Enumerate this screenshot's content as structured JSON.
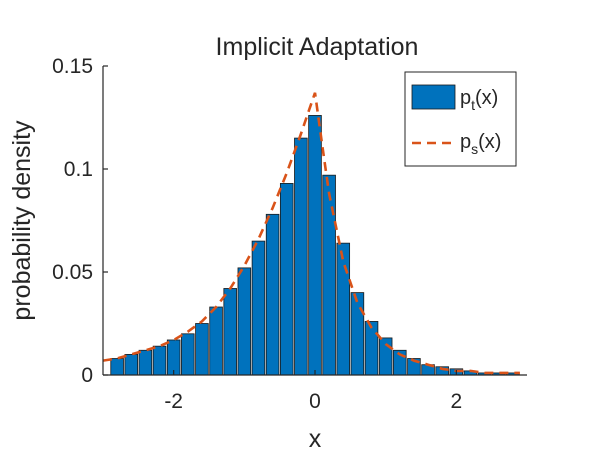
{
  "chart_data": {
    "type": "bar",
    "title": "Implicit Adaptation",
    "xlabel": "x",
    "ylabel": "probability density",
    "xlim": [
      -3,
      3
    ],
    "ylim": [
      0,
      0.15
    ],
    "xticks": [
      -2,
      0,
      2
    ],
    "xtick_labels": [
      "-2",
      "0",
      "2"
    ],
    "yticks": [
      0,
      0.05,
      0.1,
      0.15
    ],
    "ytick_labels": [
      "0",
      "0.05",
      "0.1",
      "0.15"
    ],
    "grid": false,
    "legend_position": "top-right",
    "bar_width": 0.18,
    "histogram": {
      "name_main": "p",
      "name_sub": "t",
      "name_suffix": "(x)",
      "color": "#0072BD",
      "bin_centers": [
        -2.8,
        -2.6,
        -2.4,
        -2.2,
        -2.0,
        -1.8,
        -1.6,
        -1.4,
        -1.2,
        -1.0,
        -0.8,
        -0.6,
        -0.4,
        -0.2,
        0.0,
        0.2,
        0.4,
        0.6,
        0.8,
        1.0,
        1.2,
        1.4,
        1.6,
        1.8,
        2.0,
        2.2,
        2.4,
        2.6,
        2.8
      ],
      "values": [
        0.008,
        0.01,
        0.012,
        0.014,
        0.017,
        0.02,
        0.025,
        0.033,
        0.042,
        0.052,
        0.065,
        0.078,
        0.093,
        0.115,
        0.126,
        0.097,
        0.064,
        0.04,
        0.026,
        0.018,
        0.012,
        0.008,
        0.005,
        0.004,
        0.003,
        0.002,
        0.001,
        0.001,
        0.001
      ]
    },
    "density": {
      "name_main": "p",
      "name_sub": "s",
      "name_suffix": "(x)",
      "color": "#D95319",
      "x": [
        -3.0,
        -2.8,
        -2.6,
        -2.4,
        -2.2,
        -2.0,
        -1.8,
        -1.6,
        -1.4,
        -1.2,
        -1.0,
        -0.8,
        -0.6,
        -0.4,
        -0.2,
        -0.1,
        0.0,
        0.1,
        0.2,
        0.4,
        0.6,
        0.8,
        1.0,
        1.2,
        1.4,
        1.6,
        1.8,
        2.0,
        2.2,
        2.4,
        2.6,
        2.8,
        2.9
      ],
      "y": [
        0.007,
        0.008,
        0.01,
        0.012,
        0.014,
        0.017,
        0.021,
        0.026,
        0.033,
        0.042,
        0.053,
        0.066,
        0.081,
        0.098,
        0.117,
        0.127,
        0.137,
        0.112,
        0.088,
        0.055,
        0.035,
        0.023,
        0.015,
        0.01,
        0.007,
        0.005,
        0.003,
        0.002,
        0.002,
        0.001,
        0.001,
        0.001,
        0.001
      ]
    }
  }
}
